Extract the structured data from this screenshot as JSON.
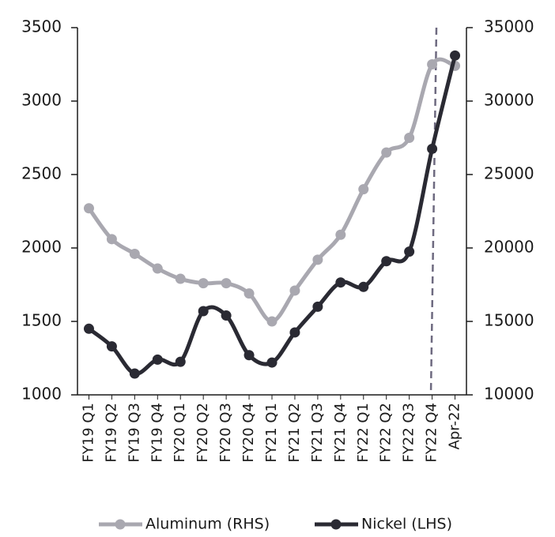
{
  "chart_data": {
    "type": "line",
    "categories": [
      "FY19 Q1",
      "FY19 Q2",
      "FY19 Q3",
      "FY19 Q4",
      "FY20 Q1",
      "FY20 Q2",
      "FY20 Q3",
      "FY20 Q4",
      "FY21 Q1",
      "FY21 Q2",
      "FY21 Q3",
      "FY21 Q4",
      "FY22 Q1",
      "FY22 Q2",
      "FY22 Q3",
      "FY22 Q4",
      "Apr-22"
    ],
    "series": [
      {
        "name": "Aluminum (RHS)",
        "color": "#a9a8b0",
        "axis": "y2",
        "values": [
          22700,
          20600,
          19600,
          18600,
          17900,
          17600,
          17600,
          16900,
          15000,
          17100,
          19200,
          20900,
          24000,
          26500,
          27500,
          32500,
          32400
        ]
      },
      {
        "name": "Nickel (LHS)",
        "color": "#2a2a33",
        "values": [
          1450,
          1330,
          1145,
          1240,
          1225,
          1570,
          1540,
          1270,
          1220,
          1425,
          1600,
          1765,
          1735,
          1910,
          1975,
          2675,
          3310
        ]
      }
    ],
    "ylim": [
      1000,
      3500
    ],
    "yticks": [
      1000,
      1500,
      2000,
      2500,
      3000,
      3500
    ],
    "y2lim": [
      10000,
      35000
    ],
    "y2ticks": [
      10000,
      15000,
      20000,
      25000,
      30000,
      35000
    ],
    "legend": "bottom"
  }
}
